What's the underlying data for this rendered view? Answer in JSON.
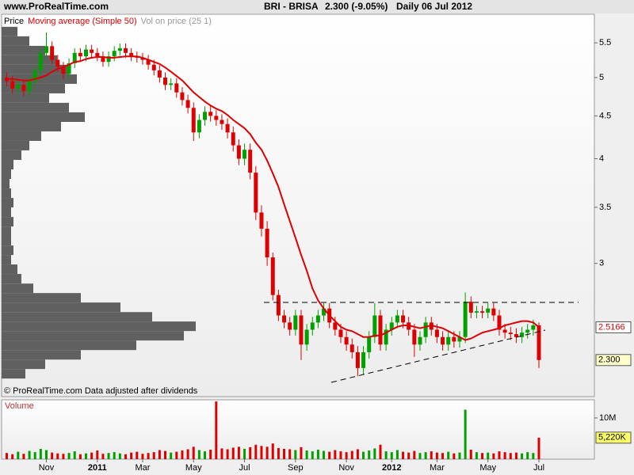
{
  "chart_data": {
    "type": "candlestick",
    "source": "www.ProRealTime.com",
    "title": "BRI - BRISA",
    "quote": "2.300 (-9.05%)",
    "period": "Daily",
    "date": "06 Jul 2012",
    "footer": "© ProRealTime.com  Data adjusted after dividends",
    "categories": [
      null,
      null,
      null,
      null,
      null,
      null,
      null,
      "Nov",
      null,
      null,
      null,
      null,
      null,
      null,
      null,
      null,
      "2011",
      null,
      null,
      null,
      null,
      null,
      null,
      null,
      "Mar",
      null,
      null,
      null,
      null,
      null,
      null,
      null,
      null,
      "May",
      null,
      null,
      null,
      null,
      null,
      null,
      null,
      null,
      "Jul",
      null,
      null,
      null,
      null,
      null,
      null,
      null,
      null,
      "Sep",
      null,
      null,
      null,
      null,
      null,
      null,
      null,
      null,
      "Nov",
      null,
      null,
      null,
      null,
      null,
      null,
      null,
      "2012",
      null,
      null,
      null,
      null,
      null,
      null,
      null,
      "Mar",
      null,
      null,
      null,
      null,
      null,
      null,
      null,
      null,
      "May",
      null,
      null,
      null,
      null,
      null,
      null,
      null,
      null,
      "Jul"
    ],
    "price": {
      "name": "Price",
      "up_color": "#00a000",
      "down_color": "#dd0000",
      "last_label": "2.300",
      "open": [
        5.0,
        4.95,
        4.85,
        4.9,
        4.82,
        4.95,
        5.1,
        5.35,
        5.45,
        5.25,
        5.15,
        5.05,
        5.2,
        5.35,
        5.3,
        5.4,
        5.35,
        5.3,
        5.22,
        5.3,
        5.38,
        5.42,
        5.35,
        5.3,
        5.28,
        5.25,
        5.18,
        5.1,
        5.0,
        4.9,
        4.92,
        4.8,
        4.7,
        4.6,
        4.3,
        4.45,
        4.55,
        4.5,
        4.45,
        4.4,
        4.3,
        4.15,
        4.0,
        4.1,
        3.85,
        3.45,
        3.3,
        3.05,
        2.75,
        2.6,
        2.55,
        2.5,
        2.6,
        2.4,
        2.5,
        2.55,
        2.6,
        2.65,
        2.55,
        2.5,
        2.45,
        2.4,
        2.35,
        2.25,
        2.35,
        2.45,
        2.6,
        2.4,
        2.5,
        2.55,
        2.6,
        2.55,
        2.5,
        2.4,
        2.45,
        2.55,
        2.5,
        2.45,
        2.4,
        2.45,
        2.42,
        2.45,
        2.7,
        2.62,
        2.63,
        2.62,
        2.65,
        2.6,
        2.5,
        2.48,
        2.47,
        2.45,
        2.48,
        2.5,
        2.53
      ],
      "high": [
        5.07,
        5.02,
        4.97,
        4.97,
        5.02,
        5.17,
        5.42,
        5.66,
        5.52,
        5.32,
        5.22,
        5.27,
        5.42,
        5.42,
        5.47,
        5.47,
        5.42,
        5.37,
        5.37,
        5.45,
        5.49,
        5.49,
        5.42,
        5.37,
        5.35,
        5.32,
        5.25,
        5.17,
        5.07,
        4.99,
        4.99,
        4.87,
        4.77,
        4.67,
        4.52,
        4.62,
        4.62,
        4.57,
        4.52,
        4.47,
        4.37,
        4.22,
        4.17,
        4.17,
        3.92,
        3.52,
        3.37,
        3.09,
        2.79,
        2.64,
        2.59,
        2.64,
        2.64,
        2.54,
        2.59,
        2.64,
        2.69,
        2.69,
        2.59,
        2.54,
        2.49,
        2.44,
        2.39,
        2.39,
        2.49,
        2.69,
        2.64,
        2.54,
        2.59,
        2.64,
        2.64,
        2.59,
        2.54,
        2.49,
        2.59,
        2.59,
        2.54,
        2.49,
        2.49,
        2.49,
        2.49,
        2.77,
        2.74,
        2.67,
        2.67,
        2.69,
        2.69,
        2.64,
        2.54,
        2.52,
        2.51,
        2.52,
        2.54,
        2.57,
        2.55
      ],
      "low": [
        4.88,
        4.78,
        4.78,
        4.75,
        4.75,
        4.88,
        5.03,
        5.28,
        5.18,
        5.08,
        4.98,
        4.98,
        5.13,
        5.23,
        5.23,
        5.28,
        5.23,
        5.15,
        5.15,
        5.23,
        5.31,
        5.28,
        5.23,
        5.21,
        5.18,
        5.11,
        5.03,
        4.93,
        4.83,
        4.83,
        4.73,
        4.63,
        4.53,
        4.2,
        4.23,
        4.38,
        4.43,
        4.38,
        4.33,
        4.23,
        4.08,
        3.93,
        3.93,
        3.78,
        3.38,
        3.23,
        2.98,
        2.71,
        2.56,
        2.51,
        2.46,
        2.46,
        2.3,
        2.36,
        2.46,
        2.51,
        2.56,
        2.51,
        2.46,
        2.41,
        2.36,
        2.31,
        2.2,
        2.21,
        2.31,
        2.41,
        2.36,
        2.36,
        2.46,
        2.51,
        2.51,
        2.46,
        2.32,
        2.36,
        2.41,
        2.46,
        2.41,
        2.36,
        2.36,
        2.38,
        2.38,
        2.41,
        2.58,
        2.58,
        2.58,
        2.58,
        2.56,
        2.46,
        2.44,
        2.43,
        2.41,
        2.41,
        2.44,
        2.46,
        2.25
      ],
      "close": [
        4.95,
        4.85,
        4.9,
        4.82,
        4.95,
        5.1,
        5.35,
        5.45,
        5.25,
        5.15,
        5.05,
        5.2,
        5.35,
        5.3,
        5.4,
        5.35,
        5.3,
        5.22,
        5.3,
        5.38,
        5.42,
        5.35,
        5.3,
        5.28,
        5.25,
        5.18,
        5.1,
        5.0,
        4.9,
        4.92,
        4.8,
        4.7,
        4.6,
        4.3,
        4.45,
        4.55,
        4.5,
        4.45,
        4.4,
        4.3,
        4.15,
        4.0,
        4.1,
        3.85,
        3.45,
        3.3,
        3.05,
        2.75,
        2.6,
        2.55,
        2.5,
        2.6,
        2.4,
        2.5,
        2.55,
        2.6,
        2.65,
        2.55,
        2.5,
        2.45,
        2.4,
        2.35,
        2.25,
        2.35,
        2.45,
        2.6,
        2.4,
        2.5,
        2.55,
        2.6,
        2.55,
        2.5,
        2.4,
        2.45,
        2.55,
        2.5,
        2.45,
        2.4,
        2.45,
        2.42,
        2.45,
        2.7,
        2.62,
        2.63,
        2.62,
        2.65,
        2.6,
        2.5,
        2.48,
        2.47,
        2.45,
        2.48,
        2.5,
        2.53,
        2.3
      ]
    },
    "moving_average": {
      "name": "Moving average (Simple 50)",
      "color": "#dd0000",
      "values": [
        4.98,
        4.98,
        4.97,
        4.96,
        4.96,
        4.98,
        5.0,
        5.03,
        5.08,
        5.12,
        5.15,
        5.18,
        5.22,
        5.23,
        5.26,
        5.28,
        5.29,
        5.29,
        5.28,
        5.28,
        5.29,
        5.3,
        5.3,
        5.3,
        5.28,
        5.25,
        5.22,
        5.19,
        5.14,
        5.08,
        5.02,
        4.96,
        4.88,
        4.8,
        4.74,
        4.68,
        4.63,
        4.59,
        4.56,
        4.51,
        4.45,
        4.4,
        4.35,
        4.28,
        4.18,
        4.1,
        3.98,
        3.84,
        3.7,
        3.53,
        3.37,
        3.22,
        3.07,
        2.94,
        2.8,
        2.71,
        2.65,
        2.6,
        2.56,
        2.52,
        2.5,
        2.49,
        2.47,
        2.45,
        2.45,
        2.46,
        2.46,
        2.48,
        2.5,
        2.52,
        2.53,
        2.53,
        2.52,
        2.51,
        2.52,
        2.53,
        2.52,
        2.51,
        2.49,
        2.47,
        2.45,
        2.43,
        2.44,
        2.46,
        2.48,
        2.49,
        2.5,
        2.51,
        2.53,
        2.54,
        2.55,
        2.56,
        2.56,
        2.55,
        2.5166
      ]
    },
    "volume_profile": {
      "name": "Vol on price (25 1)",
      "color": "#606060",
      "bins": [
        5.748,
        5.6,
        5.455,
        5.315,
        5.178,
        5.044,
        4.914,
        4.787,
        4.664,
        4.544,
        4.426,
        4.312,
        4.201,
        4.093,
        3.987,
        3.884,
        3.784,
        3.686,
        3.591,
        3.499,
        3.408,
        3.32,
        3.235,
        3.151,
        3.07,
        2.991,
        2.914,
        2.838,
        2.765,
        2.694,
        2.624,
        2.557,
        2.491,
        2.427,
        2.364,
        2.303,
        2.244,
        2.186
      ],
      "counts": [
        20,
        35,
        55,
        70,
        85,
        95,
        80,
        60,
        85,
        105,
        75,
        50,
        35,
        25,
        15,
        12,
        10,
        12,
        15,
        12,
        15,
        12,
        12,
        15,
        12,
        20,
        25,
        40,
        100,
        150,
        190,
        245,
        230,
        170,
        100,
        55,
        30
      ]
    },
    "volume": {
      "name": "Volume",
      "last_label": "5,220K",
      "values": [
        1500000,
        1200000,
        1800000,
        1300000,
        2000000,
        1700000,
        2500000,
        2200000,
        1600000,
        1400000,
        1300000,
        1500000,
        1900000,
        1200000,
        1400000,
        1600000,
        2100000,
        1300000,
        1500000,
        1700000,
        1400000,
        1200000,
        1600000,
        1800000,
        1300000,
        1500000,
        1700000,
        2200000,
        2000000,
        1600000,
        1800000,
        2100000,
        2400000,
        3000000,
        2200000,
        1900000,
        2300000,
        14000000,
        2600000,
        2400000,
        2800000,
        3000000,
        2500000,
        2900000,
        3500000,
        3200000,
        3000000,
        3800000,
        2700000,
        2500000,
        2400000,
        2200000,
        2900000,
        2100000,
        1900000,
        2300000,
        2000000,
        1800000,
        2200000,
        1900000,
        1700000,
        2000000,
        2400000,
        1800000,
        2100000,
        2600000,
        3500000,
        1900000,
        1700000,
        2200000,
        1800000,
        1600000,
        2000000,
        1500000,
        1700000,
        1900000,
        1600000,
        1500000,
        1800000,
        1400000,
        1600000,
        12000000,
        2300000,
        1700000,
        1500000,
        1600000,
        1400000,
        1900000,
        1700000,
        1500000,
        1600000,
        1400000,
        1700000,
        1500000,
        5220000
      ]
    },
    "log_scale": true,
    "ylim": [
      2.08,
      5.95
    ],
    "yticks": [
      3,
      3.5,
      4,
      4.5,
      5,
      5.5
    ],
    "volume_ylim": [
      0,
      14400000
    ],
    "volume_yticks": [
      {
        "value": 10000000,
        "label": "10M"
      }
    ]
  }
}
